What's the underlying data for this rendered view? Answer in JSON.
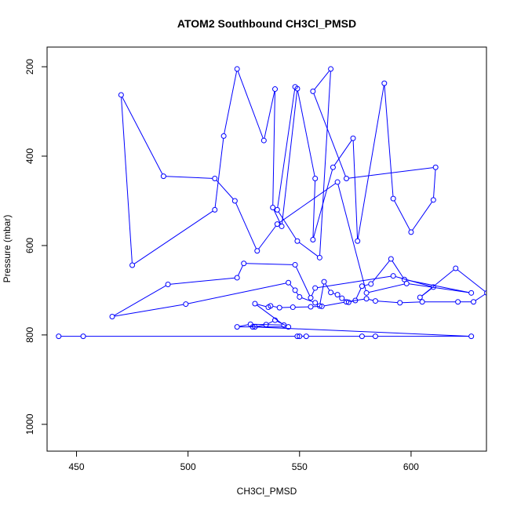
{
  "chart_data": {
    "type": "line",
    "title": "ATOM2 Southbound CH3Cl_PMSD",
    "xlabel": "CH3Cl_PMSD",
    "ylabel": "Pressure (mbar)",
    "xlim": [
      436.8,
      633.8
    ],
    "ylim": [
      1060,
      156
    ],
    "y_reversed": true,
    "x_ticks": [
      450,
      500,
      550,
      600
    ],
    "y_ticks": [
      200,
      400,
      600,
      800,
      1000
    ],
    "grid": false,
    "color": "#0000ff",
    "marker": "open-circle",
    "x": [
      442,
      453,
      549,
      550,
      553,
      578,
      584,
      627,
      529,
      530,
      535,
      539,
      545,
      522,
      528,
      543,
      530,
      536,
      537,
      541,
      547,
      555,
      560,
      571,
      580,
      584,
      595,
      605,
      621,
      628,
      634,
      620,
      604,
      610,
      592,
      557,
      555,
      548,
      525,
      522,
      491,
      466,
      499,
      545,
      548,
      550,
      557,
      559,
      561,
      564,
      567,
      569,
      572,
      575,
      578,
      582,
      591,
      597,
      627,
      598,
      580,
      567,
      540,
      531,
      521,
      512,
      489,
      470,
      475,
      512,
      516,
      522,
      534,
      539,
      538,
      542,
      549,
      557,
      556,
      565,
      574,
      576,
      588,
      592,
      600,
      610,
      611,
      571,
      556,
      564,
      559,
      549,
      540,
      548
    ],
    "y": [
      803,
      803,
      803,
      803,
      803,
      803,
      803,
      803,
      782,
      782,
      777,
      767,
      782,
      782,
      776,
      778,
      730,
      738,
      735,
      739,
      738,
      737,
      736,
      726,
      719,
      724,
      728,
      726,
      726,
      726,
      706,
      651,
      716,
      693,
      668,
      695,
      717,
      643,
      640,
      672,
      687,
      759,
      731,
      683,
      700,
      715,
      728,
      735,
      681,
      705,
      710,
      718,
      727,
      723,
      691,
      686,
      630,
      676,
      706,
      685,
      706,
      458,
      552,
      612,
      500,
      450,
      445,
      263,
      644,
      520,
      355,
      205,
      365,
      250,
      515,
      557,
      249,
      450,
      587,
      425,
      360,
      590,
      237,
      495,
      570,
      498,
      425,
      450,
      255,
      205,
      627,
      590,
      520,
      245
    ]
  }
}
